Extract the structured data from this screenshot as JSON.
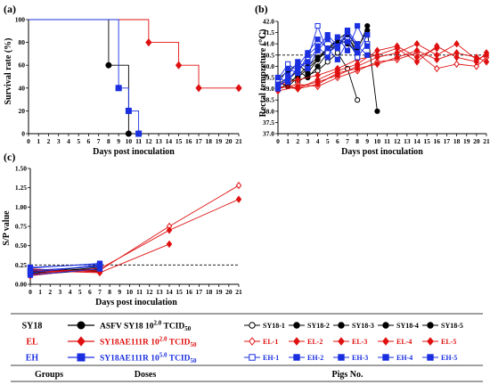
{
  "colors": {
    "sy18": "#000000",
    "el": "#e01010",
    "eh": "#1a2fe0"
  },
  "chart_data": [
    {
      "panel": "(a)",
      "type": "line",
      "step": true,
      "xlabel": "Days post inoculation",
      "ylabel": "Survival rate (%)",
      "xlim": [
        0,
        21
      ],
      "ylim": [
        0,
        100
      ],
      "xticks": [
        "0",
        "1",
        "2",
        "3",
        "4",
        "5",
        "6",
        "7",
        "8",
        "9",
        "10",
        "11",
        "12",
        "13",
        "14",
        "15",
        "16",
        "17",
        "18",
        "19",
        "20",
        "21"
      ],
      "yticks": [
        "0",
        "20",
        "40",
        "60",
        "80",
        "100"
      ],
      "series": [
        {
          "name": "SY18",
          "color": "#000000",
          "x": [
            0,
            8,
            10
          ],
          "y": [
            100,
            60,
            0
          ],
          "markers": [
            [
              8,
              60
            ],
            [
              10,
              0
            ]
          ]
        },
        {
          "name": "EL",
          "color": "#e01010",
          "x": [
            0,
            12,
            15,
            17,
            21
          ],
          "y": [
            100,
            80,
            60,
            40,
            40
          ],
          "markers": [
            [
              12,
              80
            ],
            [
              15,
              60
            ],
            [
              17,
              40
            ],
            [
              21,
              40
            ]
          ]
        },
        {
          "name": "EH",
          "color": "#1a2fe0",
          "x": [
            0,
            9,
            10,
            11
          ],
          "y": [
            100,
            40,
            20,
            0
          ],
          "markers": [
            [
              9,
              40
            ],
            [
              10,
              20
            ],
            [
              11,
              0
            ]
          ]
        }
      ]
    },
    {
      "panel": "(b)",
      "type": "line",
      "xlabel": "Days post inoculation",
      "ylabel": "Rectal tempreture (℃)",
      "xlim": [
        0,
        21
      ],
      "ylim": [
        37.0,
        42.0
      ],
      "xticks": [
        "0",
        "1",
        "2",
        "3",
        "4",
        "5",
        "6",
        "7",
        "8",
        "9",
        "10",
        "11",
        "12",
        "13",
        "14",
        "15",
        "16",
        "17",
        "18",
        "19",
        "20",
        "21"
      ],
      "yticks": [
        "37.0",
        "37.5",
        "38.0",
        "38.5",
        "39.0",
        "39.5",
        "40.0",
        "40.5",
        "41.0",
        "41.5",
        "42.0"
      ],
      "threshold": 40.5,
      "series": [
        {
          "name": "SY18-1",
          "color": "#000000",
          "x": [
            0,
            1,
            2,
            3,
            4,
            5,
            6,
            7,
            8
          ],
          "y": [
            39.2,
            39.5,
            39.3,
            39.6,
            39.8,
            40.2,
            40.6,
            39.9,
            38.5
          ]
        },
        {
          "name": "SY18-2",
          "color": "#000000",
          "x": [
            0,
            1,
            2,
            3,
            4,
            5,
            6,
            7,
            8
          ],
          "y": [
            39.4,
            39.8,
            40.1,
            39.7,
            40.3,
            40.7,
            41.2,
            41.0,
            40.6
          ]
        },
        {
          "name": "SY18-3",
          "color": "#000000",
          "x": [
            0,
            1,
            2,
            3,
            4,
            5,
            6,
            7,
            8
          ],
          "y": [
            39.0,
            39.2,
            39.6,
            40.0,
            40.4,
            40.8,
            40.9,
            41.4,
            40.5
          ]
        },
        {
          "name": "SY18-4",
          "color": "#000000",
          "x": [
            0,
            1,
            2,
            3,
            4,
            5,
            6,
            7,
            8,
            9,
            10
          ],
          "y": [
            39.3,
            39.1,
            39.5,
            39.9,
            40.3,
            40.8,
            41.2,
            41.5,
            40.8,
            41.6,
            38.0
          ]
        },
        {
          "name": "SY18-5",
          "color": "#000000",
          "x": [
            0,
            1,
            2,
            3,
            4,
            5,
            6,
            7,
            8,
            9
          ],
          "y": [
            39.1,
            39.4,
            39.8,
            39.5,
            40.0,
            40.6,
            41.0,
            41.3,
            40.7,
            41.8
          ]
        },
        {
          "name": "EL-1",
          "color": "#e01010",
          "x": [
            0,
            2,
            4,
            6,
            8,
            10,
            12,
            14,
            16,
            18,
            20,
            21
          ],
          "y": [
            39.0,
            39.2,
            39.1,
            39.5,
            39.8,
            40.2,
            40.3,
            40.6,
            39.9,
            40.1,
            40.0,
            40.4
          ]
        },
        {
          "name": "EL-2",
          "color": "#e01010",
          "x": [
            0,
            2,
            4,
            6,
            8,
            10,
            12,
            14,
            16,
            18,
            20,
            21
          ],
          "y": [
            39.2,
            39.4,
            39.6,
            39.9,
            40.3,
            40.5,
            40.8,
            40.2,
            40.9,
            40.4,
            40.2,
            40.6
          ]
        },
        {
          "name": "EL-3",
          "color": "#e01010",
          "x": [
            0,
            2,
            4,
            6,
            8,
            10,
            12,
            14,
            16
          ],
          "y": [
            39.1,
            39.0,
            39.4,
            39.8,
            40.1,
            40.7,
            40.9,
            40.4,
            40.8
          ]
        },
        {
          "name": "EL-4",
          "color": "#e01010",
          "x": [
            0,
            2,
            4,
            6,
            8,
            10,
            12,
            14,
            16,
            18,
            20,
            21
          ],
          "y": [
            38.9,
            39.1,
            39.3,
            39.6,
            40.0,
            40.4,
            40.6,
            41.0,
            40.5,
            41.0,
            40.3,
            40.5
          ]
        },
        {
          "name": "EL-5",
          "color": "#e01010",
          "x": [
            0,
            2,
            4,
            6,
            8,
            10,
            12,
            14,
            16,
            18,
            20,
            21
          ],
          "y": [
            39.3,
            39.0,
            39.2,
            39.7,
            39.9,
            40.1,
            40.4,
            40.7,
            40.3,
            40.6,
            40.4,
            40.2
          ]
        },
        {
          "name": "EH-1",
          "color": "#1a2fe0",
          "x": [
            0,
            1,
            2,
            3,
            4,
            5,
            6,
            7,
            8,
            9
          ],
          "y": [
            39.4,
            40.1,
            39.8,
            40.3,
            41.8,
            40.6,
            40.9,
            41.2,
            40.4,
            41.0
          ]
        },
        {
          "name": "EH-2",
          "color": "#1a2fe0",
          "x": [
            0,
            1,
            2,
            3,
            4,
            5,
            6,
            7,
            8,
            9
          ],
          "y": [
            39.0,
            39.6,
            40.2,
            39.9,
            40.7,
            41.2,
            40.8,
            41.5,
            40.9,
            40.5
          ]
        },
        {
          "name": "EH-3",
          "color": "#1a2fe0",
          "x": [
            0,
            1,
            2,
            3,
            4,
            5,
            6,
            7,
            8,
            9
          ],
          "y": [
            39.2,
            39.9,
            39.7,
            40.5,
            40.9,
            40.4,
            41.3,
            40.7,
            41.8,
            40.9
          ]
        },
        {
          "name": "EH-4",
          "color": "#1a2fe0",
          "x": [
            0,
            1,
            2,
            3,
            4,
            5,
            6,
            7,
            8,
            9
          ],
          "y": [
            39.5,
            39.3,
            40.0,
            40.6,
            41.2,
            40.8,
            40.3,
            41.1,
            40.6,
            41.4
          ]
        },
        {
          "name": "EH-5",
          "color": "#1a2fe0",
          "x": [
            0,
            1,
            2,
            3,
            4,
            5,
            6,
            7,
            8
          ],
          "y": [
            39.1,
            39.4,
            39.9,
            40.2,
            40.8,
            41.4,
            40.9,
            41.6,
            41.0
          ]
        }
      ]
    },
    {
      "panel": "(c)",
      "type": "line",
      "xlabel": "Days post inoculation",
      "ylabel": "S/P value",
      "xlim": [
        0,
        21
      ],
      "ylim": [
        0,
        1.5
      ],
      "xticks": [
        "0",
        "1",
        "2",
        "3",
        "4",
        "5",
        "6",
        "7",
        "8",
        "9",
        "10",
        "11",
        "12",
        "13",
        "14",
        "15",
        "16",
        "17",
        "18",
        "19",
        "20",
        "21"
      ],
      "yticks": [
        "0.00",
        "0.25",
        "0.50",
        "0.75",
        "1.00",
        "1.25",
        "1.50"
      ],
      "threshold": 0.25,
      "series": [
        {
          "name": "SY18-1",
          "color": "#000000",
          "x": [
            0,
            7
          ],
          "y": [
            0.17,
            0.2
          ]
        },
        {
          "name": "SY18-2",
          "color": "#000000",
          "x": [
            0,
            7
          ],
          "y": [
            0.14,
            0.22
          ]
        },
        {
          "name": "SY18-3",
          "color": "#000000",
          "x": [
            0,
            7
          ],
          "y": [
            0.19,
            0.17
          ]
        },
        {
          "name": "SY18-4",
          "color": "#000000",
          "x": [
            0,
            7
          ],
          "y": [
            0.12,
            0.19
          ]
        },
        {
          "name": "SY18-5",
          "color": "#000000",
          "x": [
            0,
            7
          ],
          "y": [
            0.15,
            0.24
          ]
        },
        {
          "name": "EL-1",
          "color": "#e01010",
          "x": [
            0,
            7,
            14,
            21
          ],
          "y": [
            0.16,
            0.18,
            0.75,
            1.28
          ]
        },
        {
          "name": "EL-2",
          "color": "#e01010",
          "x": [
            0,
            7,
            14,
            21
          ],
          "y": [
            0.13,
            0.2,
            0.7,
            1.1
          ]
        },
        {
          "name": "EL-3",
          "color": "#e01010",
          "x": [
            0,
            7,
            14
          ],
          "y": [
            0.18,
            0.15,
            0.52
          ]
        },
        {
          "name": "EL-4",
          "color": "#e01010",
          "x": [
            0,
            7
          ],
          "y": [
            0.11,
            0.21
          ]
        },
        {
          "name": "EL-5",
          "color": "#e01010",
          "x": [
            0,
            7
          ],
          "y": [
            0.2,
            0.16
          ]
        },
        {
          "name": "EH-1",
          "color": "#1a2fe0",
          "x": [
            0,
            7
          ],
          "y": [
            0.21,
            0.27
          ]
        },
        {
          "name": "EH-2",
          "color": "#1a2fe0",
          "x": [
            0,
            7
          ],
          "y": [
            0.15,
            0.25
          ]
        },
        {
          "name": "EH-3",
          "color": "#1a2fe0",
          "x": [
            0,
            7
          ],
          "y": [
            0.18,
            0.23
          ]
        },
        {
          "name": "EH-4",
          "color": "#1a2fe0",
          "x": [
            0,
            7
          ],
          "y": [
            0.12,
            0.2
          ]
        },
        {
          "name": "EH-5",
          "color": "#1a2fe0",
          "x": [
            0,
            7
          ],
          "y": [
            0.22,
            0.26
          ]
        }
      ]
    }
  ],
  "legend": {
    "column_headers": {
      "groups": "Groups",
      "doses": "Doses",
      "pigs": "Pigs No."
    },
    "rows": [
      {
        "group": "SY18",
        "color": "#000000",
        "marker": "circle",
        "dose_prefix": "ASFV SY18 10",
        "dose_exp": "2.0",
        "dose_unit": " TCID",
        "dose_sub": "50",
        "pigs": [
          "SY18-1",
          "SY18-2",
          "SY18-3",
          "SY18-4",
          "SY18-5"
        ]
      },
      {
        "group": "EL",
        "color": "#e01010",
        "marker": "diamond",
        "dose_prefix": "SY18AE111R 10",
        "dose_exp": "2.0",
        "dose_unit": " TCID",
        "dose_sub": "50",
        "pigs": [
          "EL-1",
          "EL-2",
          "EL-3",
          "EL-4",
          "EL-5"
        ]
      },
      {
        "group": "EH",
        "color": "#1a2fe0",
        "marker": "square",
        "dose_prefix": "SY18AE111R 10",
        "dose_exp": "5.0",
        "dose_unit": " TCID",
        "dose_sub": "50",
        "pigs": [
          "EH-1",
          "EH-2",
          "EH-3",
          "EH-4",
          "EH-5"
        ]
      }
    ]
  }
}
